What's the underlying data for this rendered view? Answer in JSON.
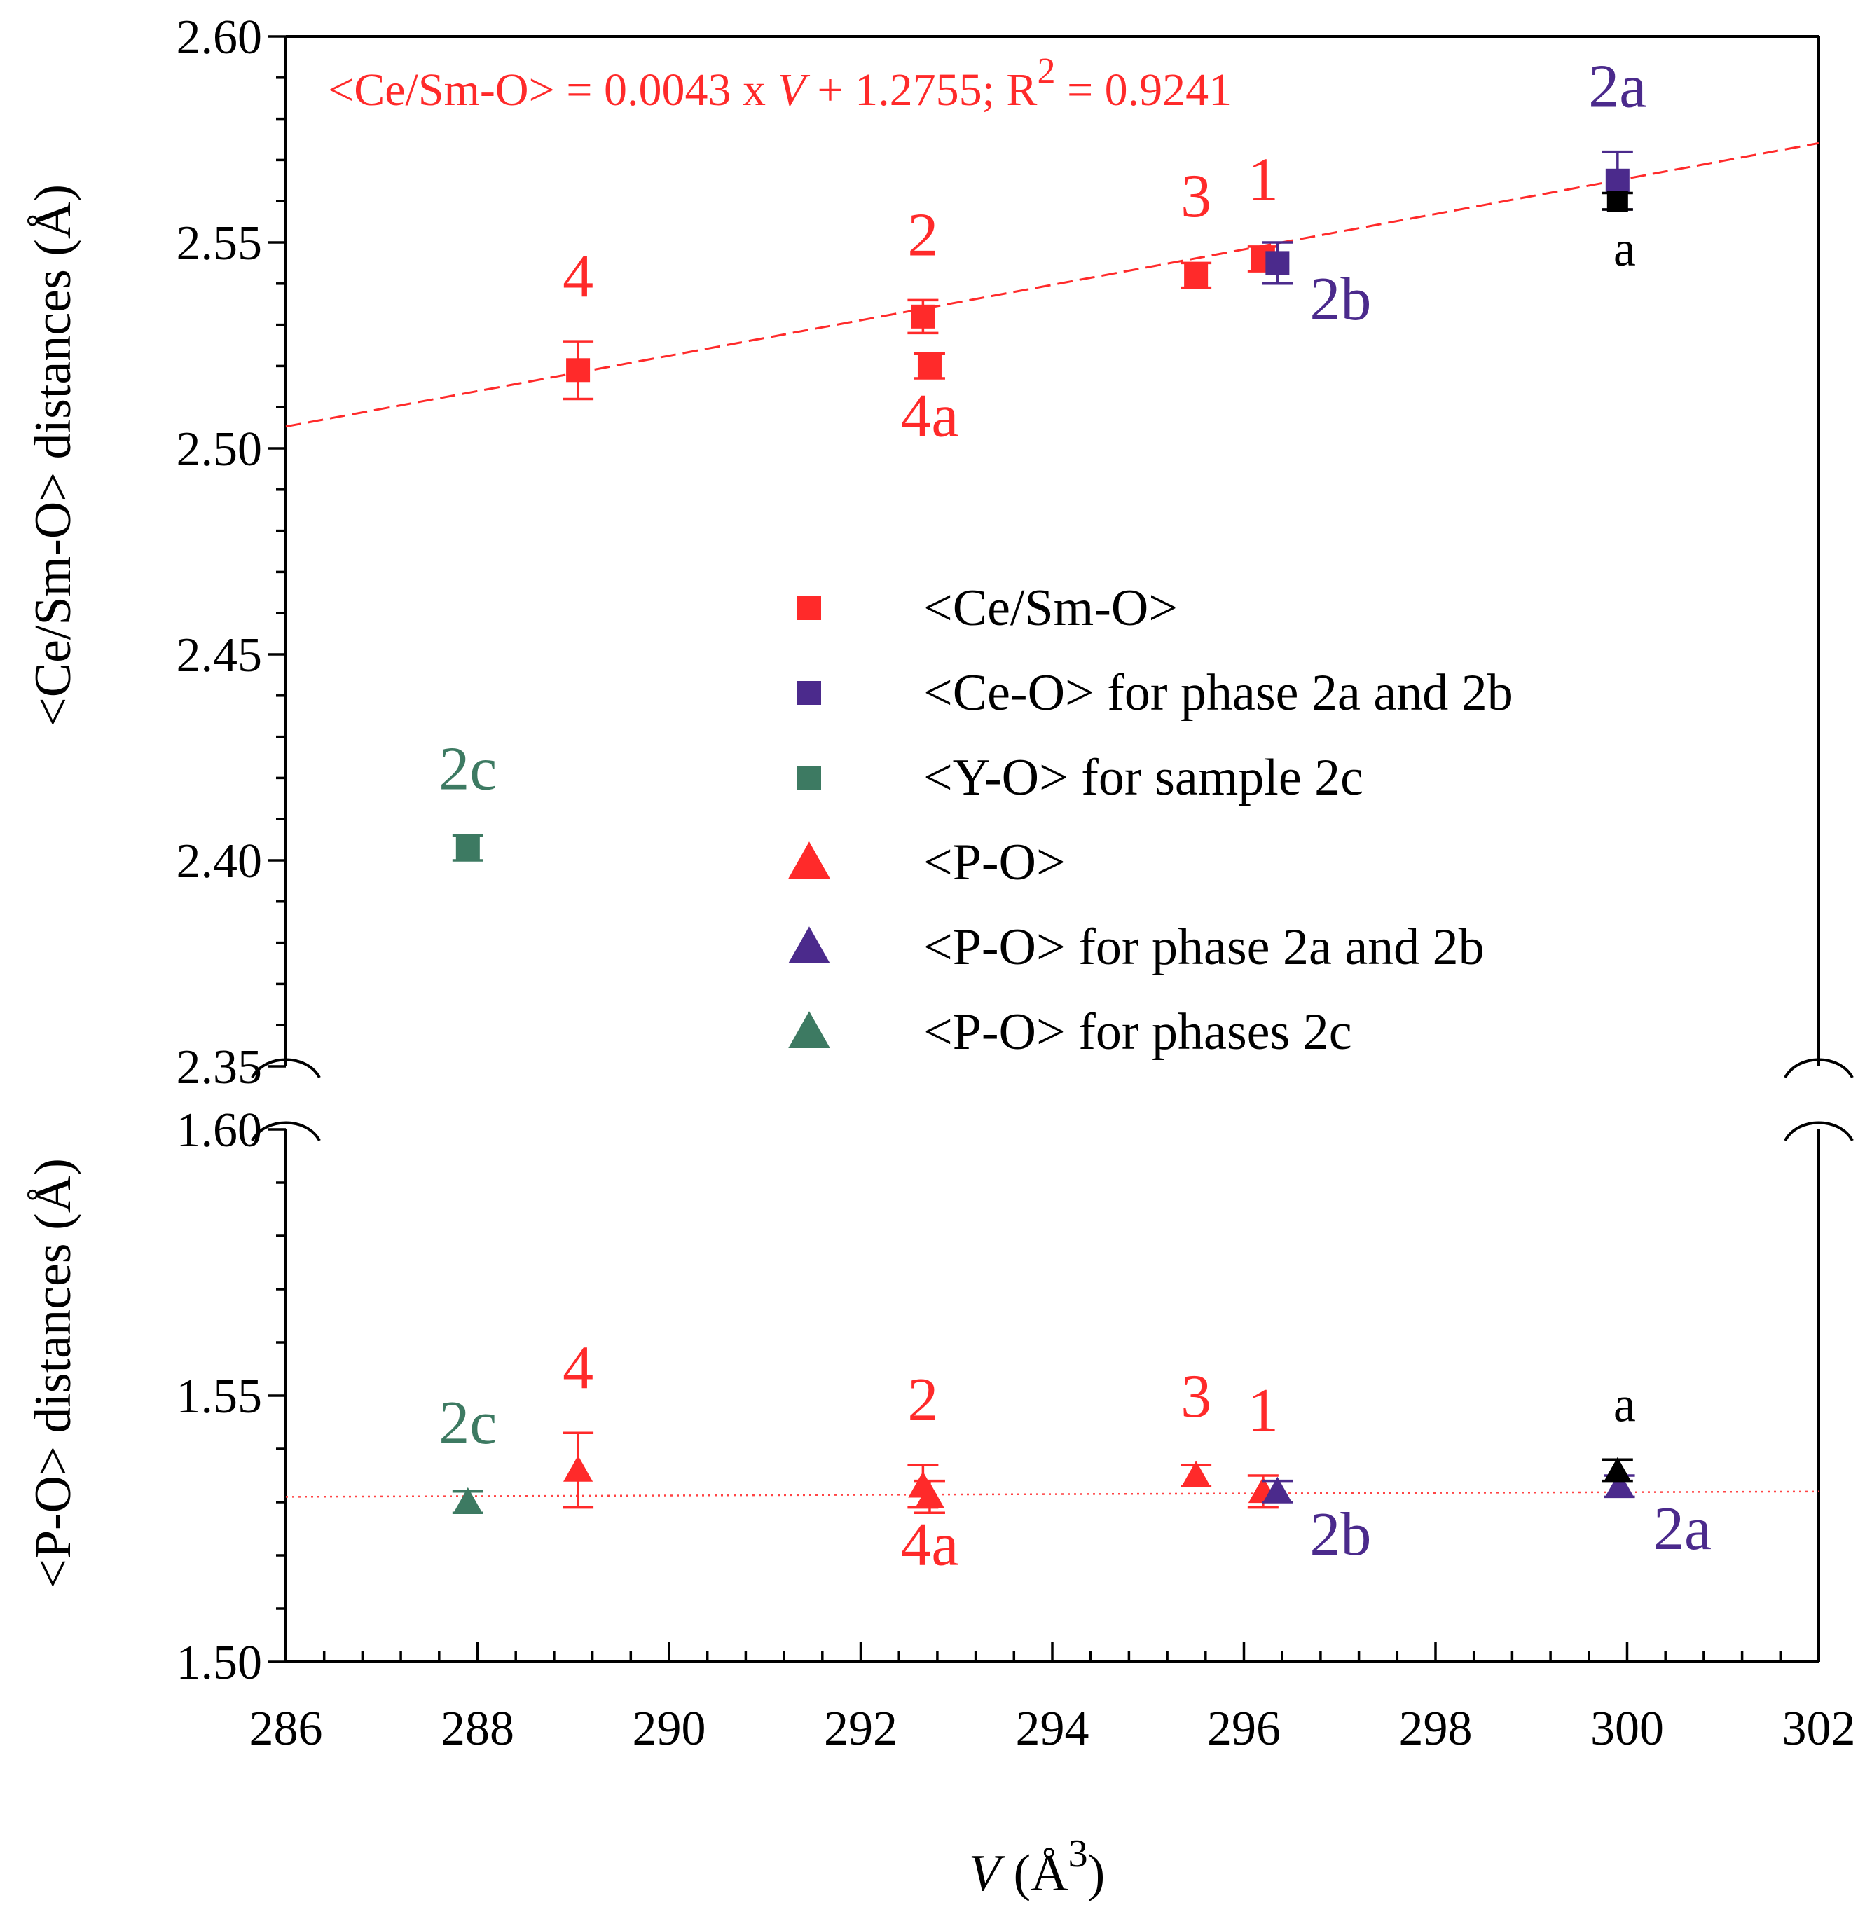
{
  "chart_data": {
    "type": "scatter",
    "x_axis": {
      "label_italic": "V",
      "label_unit": " (Å",
      "label_sup": "3",
      "label_close": ")",
      "range": [
        286,
        302
      ],
      "major_ticks": [
        286,
        288,
        290,
        292,
        294,
        296,
        298,
        300,
        302
      ],
      "tick_labels": [
        "286",
        "288",
        "290",
        "292",
        "294",
        "296",
        "298",
        "300",
        "302"
      ],
      "minor_step": 0.4
    },
    "upper_axis": {
      "label": "<Ce/Sm-O> distances (Å)",
      "range": [
        2.35,
        2.6
      ],
      "major_ticks": [
        2.35,
        2.4,
        2.45,
        2.5,
        2.55,
        2.6
      ],
      "tick_labels": [
        "2.35",
        "2.40",
        "2.45",
        "2.50",
        "2.55",
        "2.60"
      ],
      "minor_step": 0.01
    },
    "lower_axis": {
      "label": "<P-O> distances (Å)",
      "range": [
        1.5,
        1.6
      ],
      "major_ticks": [
        1.5,
        1.55,
        1.6
      ],
      "tick_labels": [
        "1.50",
        "1.55",
        "1.60"
      ],
      "minor_step": 0.01
    },
    "fit": {
      "slope": 0.0043,
      "intercept": 1.2755,
      "equation_prefix": "<Ce/Sm-O> = 0.0043 x ",
      "equation_var": "V",
      "equation_mid": " + 1.2755; R",
      "equation_sup": "2",
      "equation_suffix": " = 0.9241",
      "color": "#ff2a2a"
    },
    "po_reference": {
      "y_start": 1.531,
      "y_end": 1.532,
      "color": "#ff4444"
    },
    "series": [
      {
        "name": "<Ce/Sm-O>",
        "marker": "square",
        "color": "#ff2a2a",
        "panel": "upper",
        "points": [
          {
            "x": 289.05,
            "y": 2.519,
            "err": 0.007,
            "label": "4",
            "label_pos": "above"
          },
          {
            "x": 292.65,
            "y": 2.532,
            "err": 0.004,
            "label": "2",
            "label_pos": "above"
          },
          {
            "x": 292.72,
            "y": 2.52,
            "err": 0.003,
            "label": "4a",
            "label_pos": "below"
          },
          {
            "x": 295.5,
            "y": 2.542,
            "err": 0.003,
            "label": "3",
            "label_pos": "above"
          },
          {
            "x": 296.2,
            "y": 2.546,
            "err": 0.003,
            "label": "1",
            "label_pos": "above"
          }
        ]
      },
      {
        "name": "<Ce-O> for phase 2a and 2b",
        "marker": "square",
        "color": "#4b2a8c",
        "panel": "upper",
        "points": [
          {
            "x": 296.35,
            "y": 2.545,
            "err": 0.005,
            "label": "2b",
            "label_pos": "below-right"
          },
          {
            "x": 299.9,
            "y": 2.565,
            "err": 0.007,
            "label": "2a",
            "label_pos": "above"
          }
        ]
      },
      {
        "name": "<Y-O> for sample 2c",
        "marker": "square",
        "color": "#3d7a62",
        "panel": "upper",
        "points": [
          {
            "x": 287.9,
            "y": 2.403,
            "err": 0.003,
            "label": "2c",
            "label_pos": "above"
          }
        ]
      },
      {
        "name": "<P-O>",
        "marker": "triangle",
        "color": "#ff2a2a",
        "panel": "lower",
        "points": [
          {
            "x": 289.05,
            "y": 1.536,
            "err": 0.007,
            "label": "4",
            "label_pos": "above"
          },
          {
            "x": 292.65,
            "y": 1.533,
            "err": 0.004,
            "label": "2",
            "label_pos": "above"
          },
          {
            "x": 292.72,
            "y": 1.531,
            "err": 0.003,
            "label": "4a",
            "label_pos": "below"
          },
          {
            "x": 295.5,
            "y": 1.535,
            "err": 0.002,
            "label": "3",
            "label_pos": "above"
          },
          {
            "x": 296.2,
            "y": 1.532,
            "err": 0.003,
            "label": "1",
            "label_pos": "above"
          }
        ]
      },
      {
        "name": "<P-O> for phase 2a and 2b",
        "marker": "triangle",
        "color": "#4b2a8c",
        "panel": "lower",
        "points": [
          {
            "x": 296.35,
            "y": 1.532,
            "err": 0.002,
            "label": "2b",
            "label_pos": "below-right"
          },
          {
            "x": 299.92,
            "y": 1.533,
            "err": 0.002,
            "label": "2a",
            "label_pos": "below-right"
          }
        ]
      },
      {
        "name": "<P-O> for phases 2c",
        "marker": "triangle",
        "color": "#3d7a62",
        "panel": "lower",
        "points": [
          {
            "x": 287.9,
            "y": 1.53,
            "err": 0.002,
            "label": "2c",
            "label_pos": "above"
          }
        ]
      }
    ],
    "annotations": [
      {
        "text": "a",
        "x": 299.9,
        "y": 2.56,
        "err": 0.002,
        "panel": "upper",
        "marker": "square",
        "color": "#000000",
        "label_pos": "below"
      },
      {
        "text": "a",
        "x": 299.9,
        "y": 1.536,
        "err": 0.002,
        "panel": "lower",
        "marker": "triangle",
        "color": "#000000",
        "label_pos": "above"
      }
    ],
    "legend": {
      "position": "center",
      "entries": [
        {
          "label": "<Ce/Sm-O>",
          "marker": "square",
          "color": "#ff2a2a"
        },
        {
          "label": "<Ce-O> for phase 2a and 2b",
          "marker": "square",
          "color": "#4b2a8c"
        },
        {
          "label": "<Y-O> for sample 2c",
          "marker": "square",
          "color": "#3d7a62"
        },
        {
          "label": "<P-O>",
          "marker": "triangle",
          "color": "#ff2a2a"
        },
        {
          "label": "<P-O> for phase 2a and 2b",
          "marker": "triangle",
          "color": "#4b2a8c"
        },
        {
          "label": "<P-O> for phases 2c",
          "marker": "triangle",
          "color": "#3d7a62"
        }
      ]
    }
  }
}
